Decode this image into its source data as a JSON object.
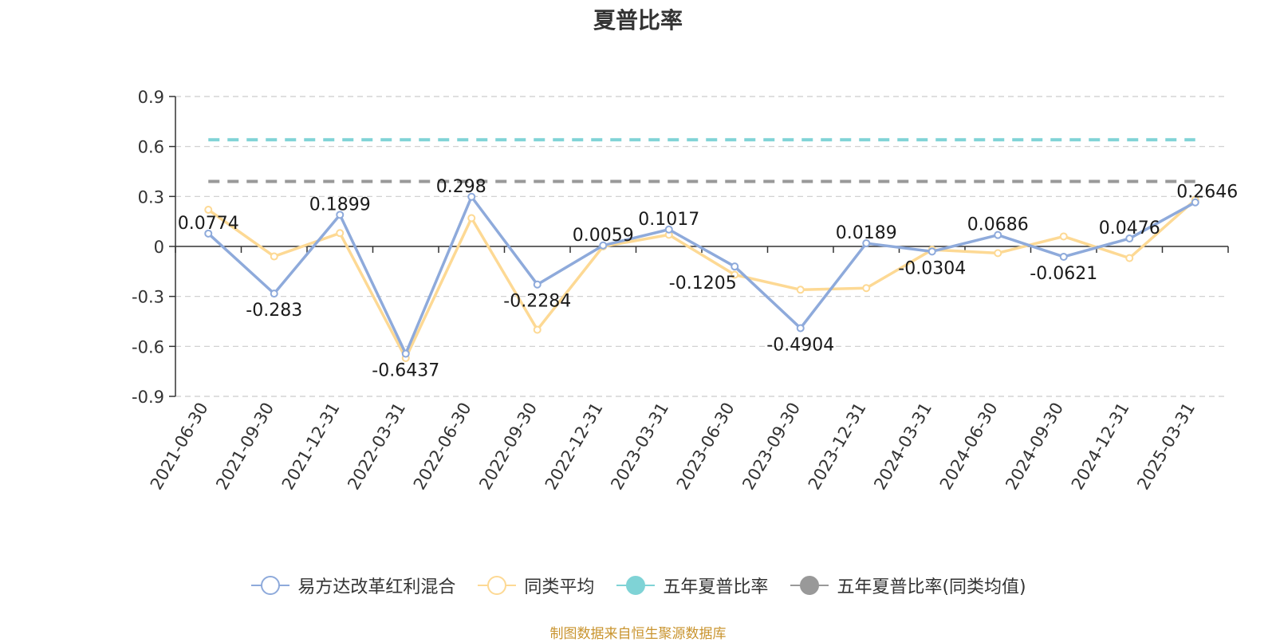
{
  "title": "夏普比率",
  "source_note": "制图数据来自恒生聚源数据库",
  "chart_data": {
    "type": "line",
    "title": "夏普比率",
    "categories": [
      "2021-06-30",
      "2021-09-30",
      "2021-12-31",
      "2022-03-31",
      "2022-06-30",
      "2022-09-30",
      "2022-12-31",
      "2023-03-31",
      "2023-06-30",
      "2023-09-30",
      "2023-12-31",
      "2024-03-31",
      "2024-06-30",
      "2024-09-30",
      "2024-12-31",
      "2025-03-31"
    ],
    "ylim": [
      -0.9,
      0.9
    ],
    "yticks": [
      "0.9",
      "0.6",
      "0.3",
      "0",
      "-0.3",
      "-0.6",
      "-0.9"
    ],
    "grid": true,
    "legend_position": "bottom",
    "series": [
      {
        "name": "易方达改革红利混合",
        "color": "#8eaadb",
        "values": [
          0.0774,
          -0.283,
          0.1899,
          -0.6437,
          0.298,
          -0.2284,
          0.0059,
          0.1017,
          -0.1205,
          -0.4904,
          0.0189,
          -0.0304,
          0.0686,
          -0.0621,
          0.0476,
          0.2646
        ],
        "labels": [
          "0.0774",
          "-0.283",
          "0.1899",
          "-0.6437",
          "0.298",
          "-0.2284",
          "0.0059",
          "0.1017",
          "-0.1205",
          "-0.4904",
          "0.0189",
          "-0.0304",
          "0.0686",
          "-0.0621",
          "0.0476",
          "0.2646"
        ]
      },
      {
        "name": "同类平均",
        "color": "#fdd994",
        "values": [
          0.22,
          -0.06,
          0.08,
          -0.67,
          0.17,
          -0.5,
          0.0,
          0.07,
          -0.17,
          -0.26,
          -0.25,
          -0.02,
          -0.04,
          0.06,
          -0.07,
          0.28
        ]
      }
    ],
    "reference_lines": [
      {
        "name": "五年夏普比率",
        "color": "#7fd3d6",
        "value": 0.64
      },
      {
        "name": "五年夏普比率(同类均值)",
        "color": "#999999",
        "value": 0.39
      }
    ]
  }
}
